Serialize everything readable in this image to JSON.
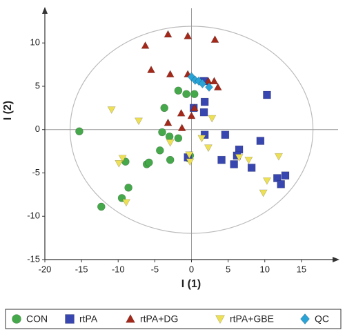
{
  "chart_data": {
    "type": "scatter",
    "x_label": "I (1)",
    "y_label": "I (2)",
    "xlim": [
      -20,
      20
    ],
    "ylim": [
      -15,
      14
    ],
    "xticks": [
      -20,
      -15,
      -10,
      -5,
      0,
      5,
      10,
      15
    ],
    "yticks": [
      -15,
      -10,
      -5,
      0,
      5,
      10
    ],
    "series": [
      {
        "name": "CON",
        "color": "#45a84a",
        "marker": "circle",
        "x": [
          -15.3,
          -12.3,
          -9.5,
          -8.6,
          -9.0,
          -6.1,
          -5.8,
          -4.3,
          -3.7,
          -4.0,
          -2.9,
          -3.0,
          -1.8,
          -1.8,
          -0.4,
          0.4,
          -0.2,
          -0.7
        ],
        "values": [
          -0.2,
          -8.9,
          -7.9,
          -6.7,
          -3.7,
          -4.0,
          -3.8,
          -2.4,
          2.5,
          -0.3,
          -3.5,
          -0.8,
          4.5,
          -1.0,
          -3.3,
          4.1,
          -3.0,
          4.1
        ]
      },
      {
        "name": "rtPA",
        "color": "#3846b0",
        "marker": "square",
        "x": [
          10.3,
          1.8,
          1.7,
          0.3,
          1.8,
          4.6,
          6.5,
          6.2,
          5.8,
          4.1,
          8.2,
          9.4,
          11.7,
          12.2,
          12.8,
          -0.5,
          1.7
        ],
        "values": [
          4.0,
          3.2,
          2.0,
          2.5,
          -0.6,
          -0.6,
          -2.3,
          -3.0,
          -4.0,
          -3.5,
          -4.4,
          -1.3,
          -5.6,
          -6.3,
          -5.3,
          -3.2,
          5.6
        ]
      },
      {
        "name": "rtPA+DG",
        "color": "#a3281a",
        "marker": "triangle",
        "x": [
          -6.3,
          -3.2,
          -0.5,
          3.2,
          -5.5,
          -2.9,
          -0.5,
          2.3,
          3.1,
          3.6,
          -1.4,
          0.4,
          -3.2,
          0.0,
          -1.3
        ],
        "values": [
          9.7,
          11.0,
          10.8,
          10.4,
          6.9,
          6.4,
          6.4,
          5.6,
          5.6,
          4.9,
          1.9,
          2.5,
          0.8,
          1.6,
          0.2
        ]
      },
      {
        "name": "rtPA+GBE",
        "color": "#eee055",
        "marker": "triangle-down",
        "x": [
          -10.9,
          -7.2,
          -9.4,
          -9.9,
          -8.9,
          -2.9,
          -0.3,
          -0.2,
          1.4,
          2.3,
          2.8,
          6.5,
          7.8,
          11.9,
          10.3,
          9.8
        ],
        "values": [
          2.3,
          1.0,
          -3.3,
          -3.9,
          -8.4,
          -1.5,
          -2.9,
          -3.7,
          -1.0,
          -2.1,
          1.3,
          -3.2,
          -3.5,
          -3.1,
          -5.9,
          -7.3
        ]
      },
      {
        "name": "QC",
        "color": "#2aa3d6",
        "marker": "diamond",
        "x": [
          0.0,
          0.5,
          1.0,
          1.5,
          2.4
        ],
        "values": [
          6.1,
          5.7,
          5.6,
          5.3,
          4.9
        ]
      }
    ]
  }
}
